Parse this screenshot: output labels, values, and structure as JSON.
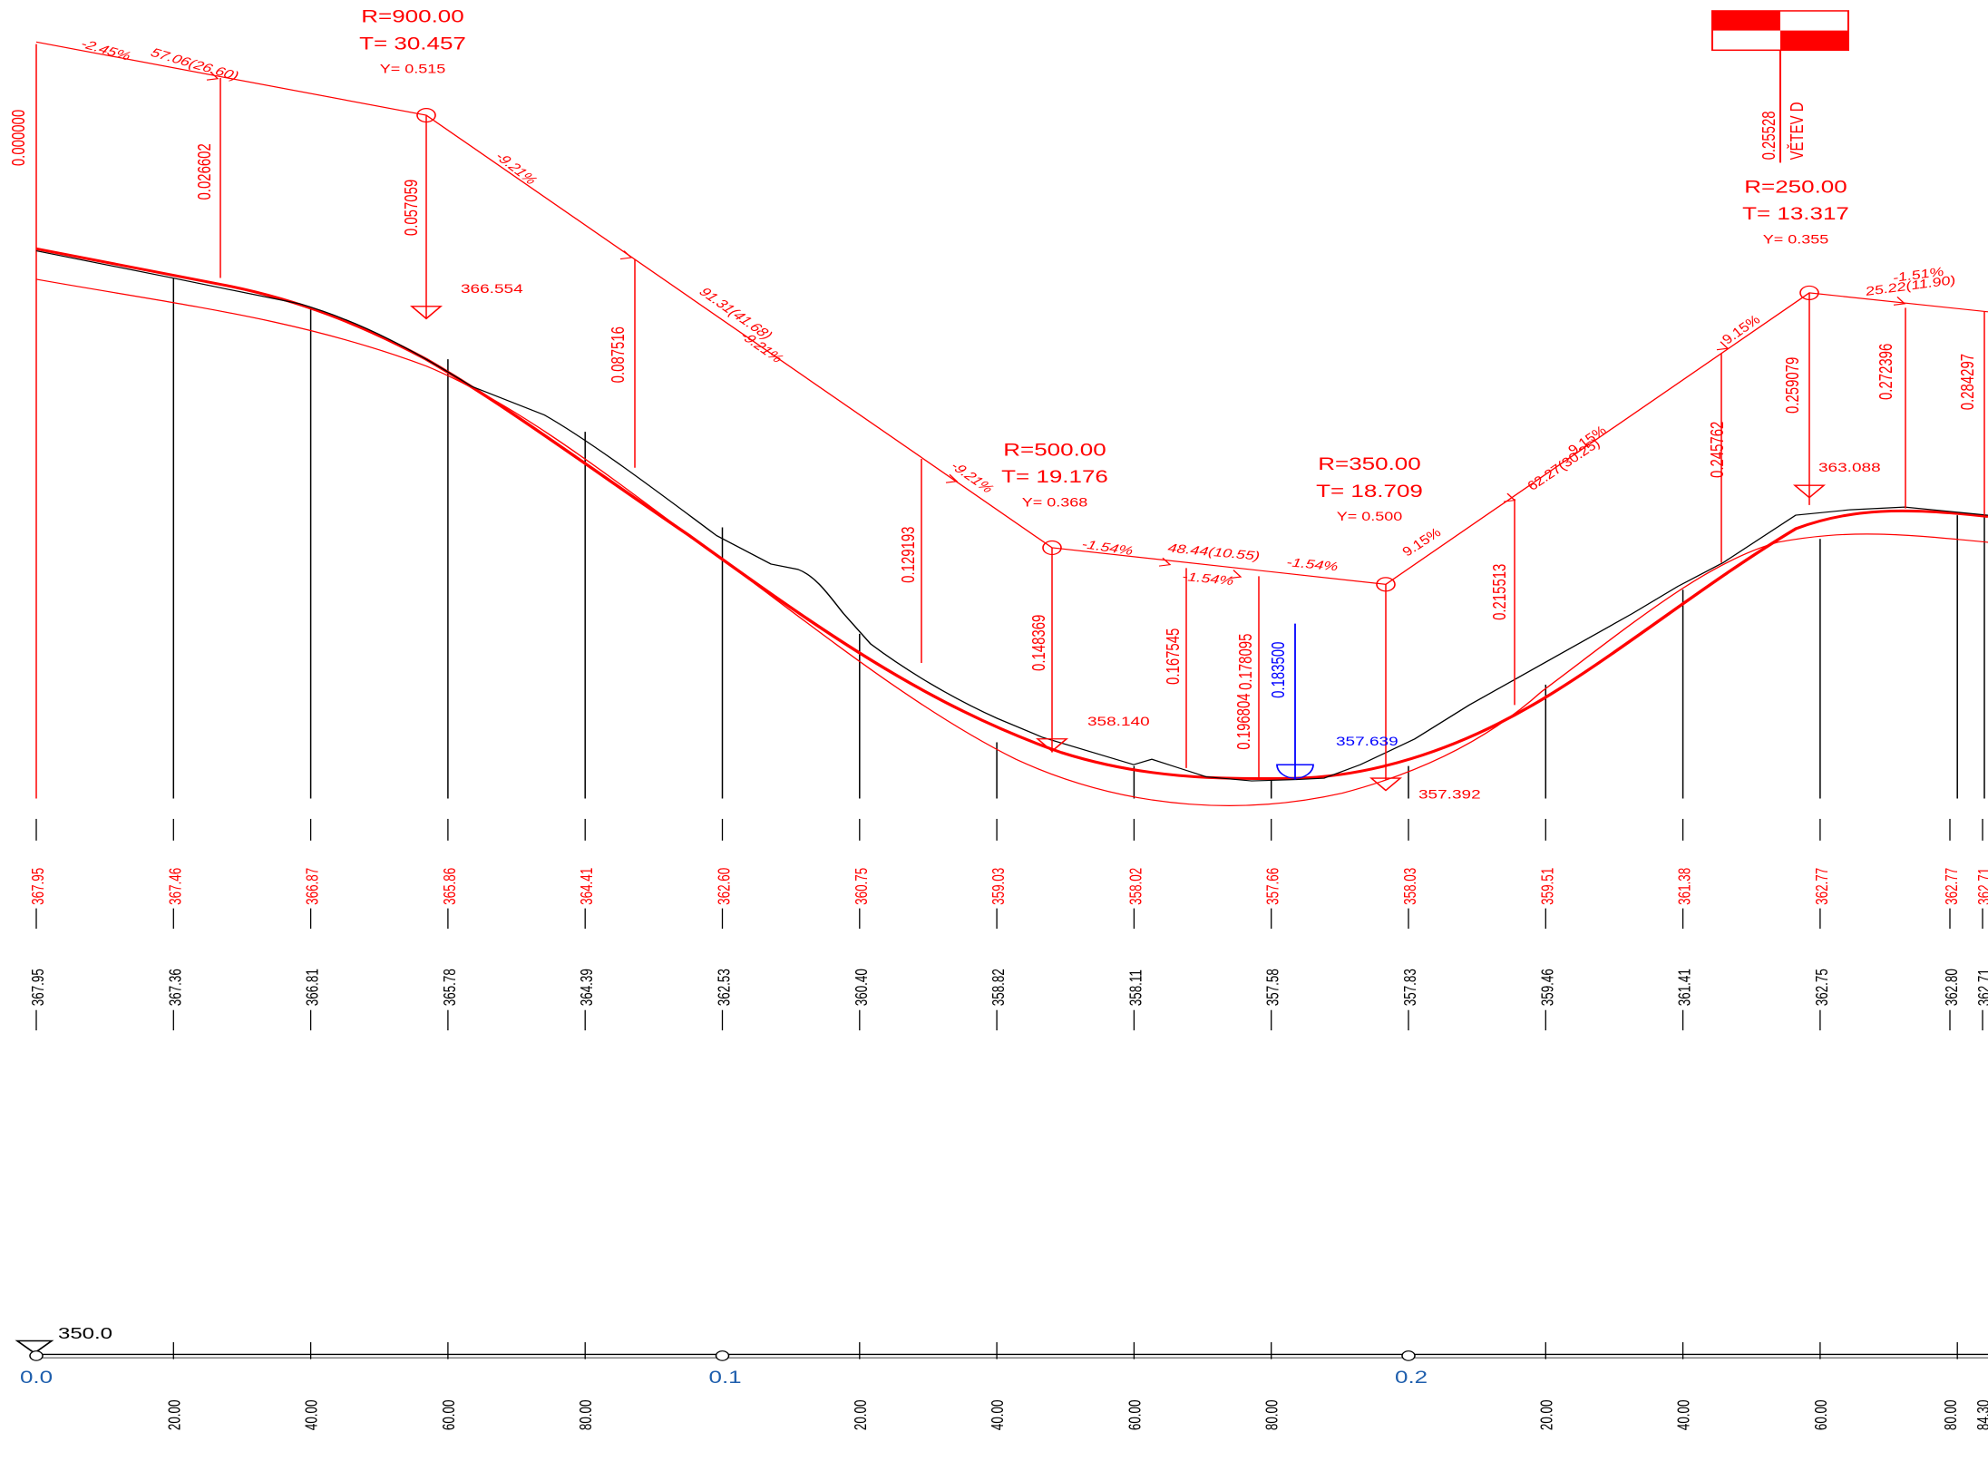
{
  "datum": {
    "label": "350.0"
  },
  "kilometers": [
    "0.0",
    "0.1",
    "0.2"
  ],
  "stations": [
    {
      "label": "",
      "design": "367.95",
      "terrain": "367.95"
    },
    {
      "label": "20.00",
      "design": "367.46",
      "terrain": "367.36"
    },
    {
      "label": "40.00",
      "design": "366.87",
      "terrain": "366.81"
    },
    {
      "label": "60.00",
      "design": "365.86",
      "terrain": "365.78"
    },
    {
      "label": "80.00",
      "design": "364.41",
      "terrain": "364.39"
    },
    {
      "label": "",
      "design": "362.60",
      "terrain": "362.53"
    },
    {
      "label": "20.00",
      "design": "360.75",
      "terrain": "360.40"
    },
    {
      "label": "40.00",
      "design": "359.03",
      "terrain": "358.82"
    },
    {
      "label": "60.00",
      "design": "358.02",
      "terrain": "358.11"
    },
    {
      "label": "80.00",
      "design": "357.66",
      "terrain": "357.58"
    },
    {
      "label": "",
      "design": "358.03",
      "terrain": "357.83"
    },
    {
      "label": "20.00",
      "design": "359.51",
      "terrain": "359.46"
    },
    {
      "label": "40.00",
      "design": "361.38",
      "terrain": "361.41"
    },
    {
      "label": "60.00",
      "design": "362.77",
      "terrain": "362.75"
    },
    {
      "label": "80.00",
      "design": "362.77",
      "terrain": "362.80"
    },
    {
      "label": "84.30",
      "design": "362.71",
      "terrain": "362.71"
    }
  ],
  "curves": [
    {
      "R": "R=900.00",
      "T": "T= 30.457",
      "Y": "Y= 0.515"
    },
    {
      "R": "R=500.00",
      "T": "T= 19.176",
      "Y": "Y= 0.368"
    },
    {
      "R": "R=350.00",
      "T": "T= 18.709",
      "Y": "Y= 0.500"
    },
    {
      "R": "R=250.00",
      "T": "T= 13.317",
      "Y": "Y= 0.355"
    }
  ],
  "grades": [
    {
      "text": "-2.45%"
    },
    {
      "text": "57.06(26.60)"
    },
    {
      "text": "-9.21%"
    },
    {
      "text": "91.31(41.68)"
    },
    {
      "text": "-9.21%"
    },
    {
      "text": "-9.21%"
    },
    {
      "text": "-1.54%"
    },
    {
      "text": "48.44(10.55)"
    },
    {
      "text": "-1.54%"
    },
    {
      "text": "-1.54%"
    },
    {
      "text": "9.15%"
    },
    {
      "text": "62.27(30.25)"
    },
    {
      "text": "9.15%"
    },
    {
      "text": "9.15%"
    },
    {
      "text": "-1.51%"
    },
    {
      "text": "25.22(11.90)"
    }
  ],
  "chainages_red": [
    "0.000000",
    "0.026602",
    "0.057059",
    "0.087516",
    "0.129193",
    "0.148369",
    "0.167545",
    "0.178095",
    "0.196804",
    "0.215513",
    "0.245762",
    "0.259079",
    "0.272396",
    "0.284297"
  ],
  "chainage_blue": "0.183500",
  "elevations": [
    "366.554",
    "358.140",
    "357.392",
    "363.088"
  ],
  "elevation_blue": "357.639",
  "branch": {
    "label": "VĚTEV D",
    "chainage": "0.25528"
  },
  "colors": {
    "design": "#ff0000",
    "terrain": "#000000",
    "marker": "#0000ff",
    "km": "#1f5fad"
  }
}
